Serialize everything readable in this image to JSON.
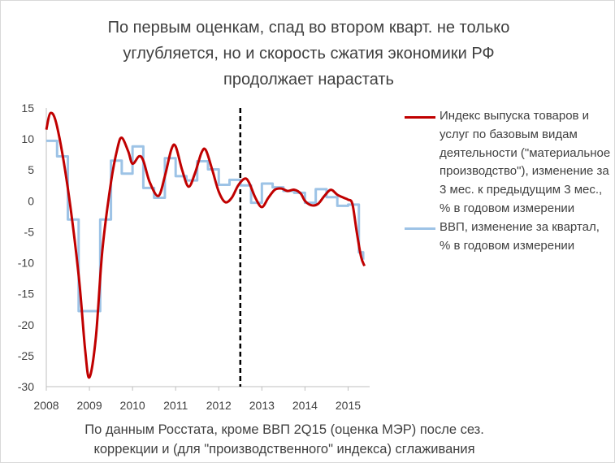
{
  "colors": {
    "industrial": "#c00000",
    "gdp": "#9dc3e6",
    "divider": "#000000",
    "text": "#404040"
  },
  "title": {
    "line1": "По первым оценкам, спад во втором кварт. не только",
    "line2": "углубляется, но и скорость сжатия экономики РФ",
    "line3": "продолжает нарастать"
  },
  "footer": {
    "line1": "По данным Росстата, кроме ВВП 2Q15 (оценка МЭР) после сез.",
    "line2": "коррекции и (для \"производственного\" индекса) сглаживания"
  },
  "chart_data": {
    "type": "line",
    "xlim": [
      2008,
      2015.5
    ],
    "ylim": [
      -30,
      15
    ],
    "y_ticks": [
      "15",
      "10",
      "5",
      "0",
      "-5",
      "-10",
      "-15",
      "-20",
      "-25",
      "-30"
    ],
    "x_ticks": [
      "2008",
      "2009",
      "2010",
      "2011",
      "2012",
      "2013",
      "2014",
      "2015"
    ],
    "vertical_marker_x": 2012.5,
    "grid": false,
    "legend_position": "right",
    "series": [
      {
        "name": "Индекс выпуска товаров и услуг по базовым видам деятельности (\"материальное производство\"), изменение за 3 мес. к предыдущим 3 мес., % в годовом измерении",
        "style": "smooth",
        "points": [
          [
            2008.0,
            11.5
          ],
          [
            2008.1,
            14.2
          ],
          [
            2008.25,
            12.0
          ],
          [
            2008.5,
            2.0
          ],
          [
            2008.75,
            -12.0
          ],
          [
            2008.9,
            -24.0
          ],
          [
            2009.0,
            -28.5
          ],
          [
            2009.15,
            -22.0
          ],
          [
            2009.3,
            -8.0
          ],
          [
            2009.5,
            3.0
          ],
          [
            2009.65,
            8.5
          ],
          [
            2009.75,
            10.2
          ],
          [
            2009.9,
            8.0
          ],
          [
            2010.0,
            6.0
          ],
          [
            2010.15,
            7.2
          ],
          [
            2010.25,
            6.5
          ],
          [
            2010.4,
            3.0
          ],
          [
            2010.6,
            0.8
          ],
          [
            2010.75,
            4.0
          ],
          [
            2010.9,
            8.3
          ],
          [
            2011.0,
            8.8
          ],
          [
            2011.15,
            5.0
          ],
          [
            2011.3,
            2.3
          ],
          [
            2011.45,
            4.5
          ],
          [
            2011.6,
            7.8
          ],
          [
            2011.7,
            8.2
          ],
          [
            2011.85,
            5.0
          ],
          [
            2012.0,
            1.5
          ],
          [
            2012.15,
            -0.2
          ],
          [
            2012.3,
            0.5
          ],
          [
            2012.45,
            2.5
          ],
          [
            2012.6,
            3.6
          ],
          [
            2012.7,
            3.0
          ],
          [
            2012.85,
            0.5
          ],
          [
            2013.0,
            -1.0
          ],
          [
            2013.15,
            0.5
          ],
          [
            2013.3,
            1.8
          ],
          [
            2013.45,
            2.0
          ],
          [
            2013.6,
            1.6
          ],
          [
            2013.75,
            1.8
          ],
          [
            2013.9,
            1.2
          ],
          [
            2014.0,
            0.0
          ],
          [
            2014.15,
            -0.7
          ],
          [
            2014.3,
            -0.5
          ],
          [
            2014.45,
            0.8
          ],
          [
            2014.6,
            1.8
          ],
          [
            2014.75,
            1.0
          ],
          [
            2014.9,
            0.5
          ],
          [
            2015.0,
            0.2
          ],
          [
            2015.1,
            -0.5
          ],
          [
            2015.2,
            -5.0
          ],
          [
            2015.3,
            -9.0
          ],
          [
            2015.38,
            -10.5
          ]
        ]
      },
      {
        "name": "ВВП, изменение за квартал, % в годовом измерении",
        "style": "step",
        "points": [
          [
            2008.0,
            9.7
          ],
          [
            2008.25,
            7.2
          ],
          [
            2008.5,
            -3.0
          ],
          [
            2008.75,
            -17.8
          ],
          [
            2009.0,
            -17.8
          ],
          [
            2009.25,
            -3.0
          ],
          [
            2009.5,
            6.5
          ],
          [
            2009.75,
            4.4
          ],
          [
            2010.0,
            8.8
          ],
          [
            2010.25,
            2.1
          ],
          [
            2010.5,
            0.5
          ],
          [
            2010.75,
            6.9
          ],
          [
            2011.0,
            4.0
          ],
          [
            2011.25,
            3.3
          ],
          [
            2011.5,
            6.4
          ],
          [
            2011.75,
            5.1
          ],
          [
            2012.0,
            2.6
          ],
          [
            2012.25,
            3.4
          ],
          [
            2012.5,
            2.5
          ],
          [
            2012.75,
            -0.3
          ],
          [
            2013.0,
            2.8
          ],
          [
            2013.25,
            2.2
          ],
          [
            2013.5,
            1.6
          ],
          [
            2013.75,
            1.3
          ],
          [
            2014.0,
            -0.3
          ],
          [
            2014.25,
            1.9
          ],
          [
            2014.5,
            0.6
          ],
          [
            2014.75,
            -0.8
          ],
          [
            2015.0,
            -0.6
          ],
          [
            2015.25,
            -8.3
          ],
          [
            2015.35,
            -9.5
          ]
        ]
      }
    ]
  }
}
